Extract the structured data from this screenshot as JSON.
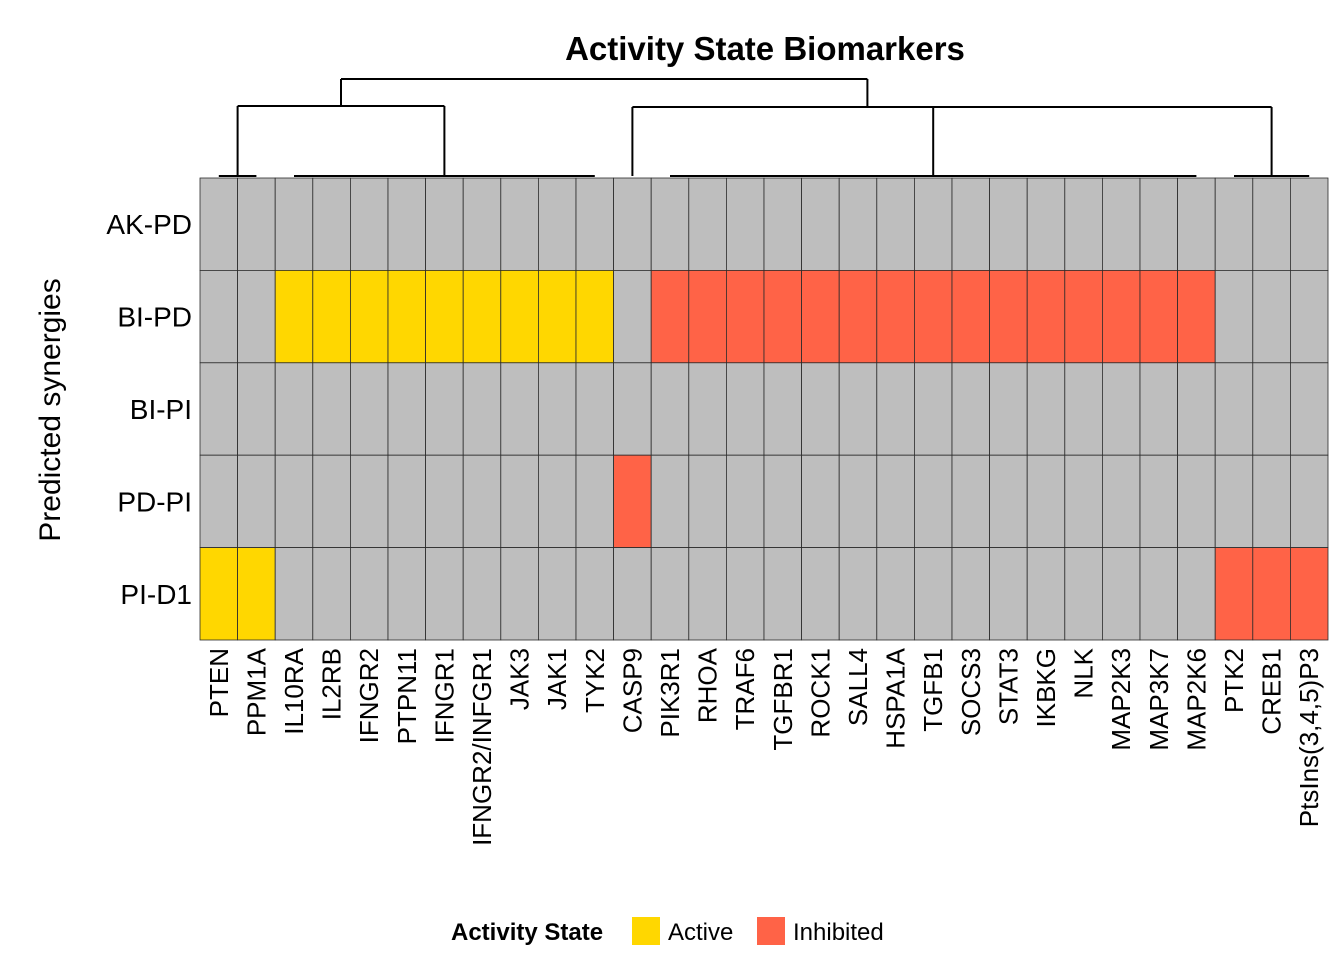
{
  "chart_data": {
    "type": "heatmap",
    "title": "Activity State Biomarkers",
    "ylabel": "Predicted synergies",
    "xlabel": "",
    "rows": [
      "AK-PD",
      "BI-PD",
      "BI-PI",
      "PD-PI",
      "PI-D1"
    ],
    "columns": [
      "PTEN",
      "PPM1A",
      "IL10RA",
      "IL2RB",
      "IFNGR2",
      "PTPN11",
      "IFNGR1",
      "IFNGR2/INFGR1",
      "JAK3",
      "JAK1",
      "TYK2",
      "CASP9",
      "PIK3R1",
      "RHOA",
      "TRAF6",
      "TGFBR1",
      "ROCK1",
      "SALL4",
      "HSPA1A",
      "TGFB1",
      "SOCS3",
      "STAT3",
      "IKBKG",
      "NLK",
      "MAP2K3",
      "MAP3K7",
      "MAP2K6",
      "PTK2",
      "CREB1",
      "PtsIns(3,4,5)P3"
    ],
    "values": [
      [
        0,
        0,
        0,
        0,
        0,
        0,
        0,
        0,
        0,
        0,
        0,
        0,
        0,
        0,
        0,
        0,
        0,
        0,
        0,
        0,
        0,
        0,
        0,
        0,
        0,
        0,
        0,
        0,
        0,
        0
      ],
      [
        0,
        0,
        1,
        1,
        1,
        1,
        1,
        1,
        1,
        1,
        1,
        0,
        -1,
        -1,
        -1,
        -1,
        -1,
        -1,
        -1,
        -1,
        -1,
        -1,
        -1,
        -1,
        -1,
        -1,
        -1,
        0,
        0,
        0
      ],
      [
        0,
        0,
        0,
        0,
        0,
        0,
        0,
        0,
        0,
        0,
        0,
        0,
        0,
        0,
        0,
        0,
        0,
        0,
        0,
        0,
        0,
        0,
        0,
        0,
        0,
        0,
        0,
        0,
        0,
        0
      ],
      [
        0,
        0,
        0,
        0,
        0,
        0,
        0,
        0,
        0,
        0,
        0,
        -1,
        0,
        0,
        0,
        0,
        0,
        0,
        0,
        0,
        0,
        0,
        0,
        0,
        0,
        0,
        0,
        0,
        0,
        0
      ],
      [
        1,
        1,
        0,
        0,
        0,
        0,
        0,
        0,
        0,
        0,
        0,
        0,
        0,
        0,
        0,
        0,
        0,
        0,
        0,
        0,
        0,
        0,
        0,
        0,
        0,
        0,
        0,
        -1,
        -1,
        -1
      ]
    ],
    "value_encoding": {
      "1": "Active",
      "-1": "Inhibited",
      "0": ""
    },
    "colors": {
      "active": "#FFD700",
      "inhibited": "#FF6347",
      "neutral": "#BEBEBE"
    },
    "legend": {
      "title": "Activity State",
      "placement": "bottom",
      "entries": [
        {
          "label": "Active",
          "color": "#FFD700"
        },
        {
          "label": "Inhibited",
          "color": "#FF6347"
        }
      ]
    },
    "column_dendrogram": true
  }
}
